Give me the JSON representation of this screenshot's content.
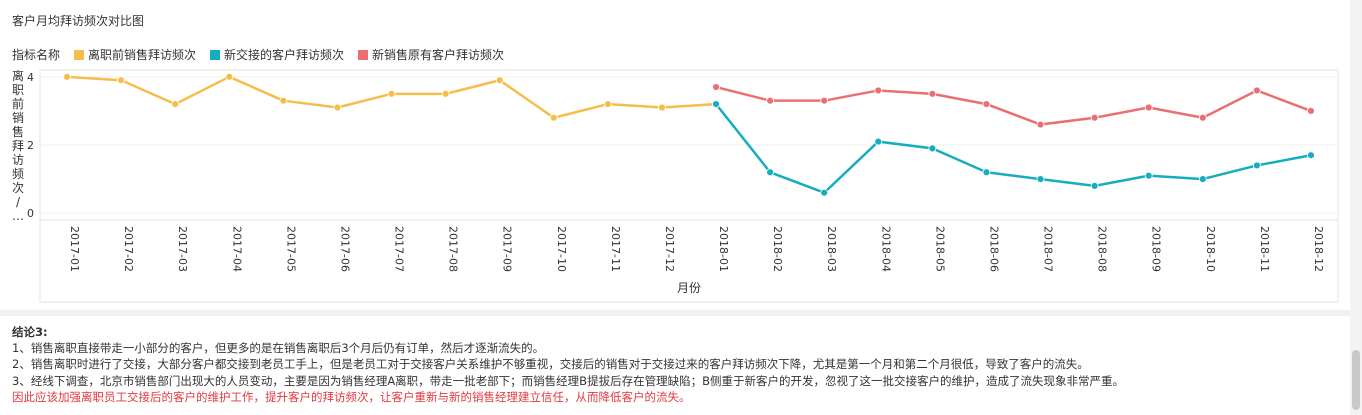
{
  "chart_data": {
    "type": "line",
    "title": "客户月均拜访频次对比图",
    "legend_title": "指标名称",
    "legend_position": "top-left",
    "xlabel": "月份",
    "ylabel": "离职前销售拜访频次/…",
    "ylim": [
      -0.2,
      4.2
    ],
    "yticks": [
      0,
      2,
      4
    ],
    "grid": true,
    "categories": [
      "2017-01",
      "2017-02",
      "2017-03",
      "2017-04",
      "2017-05",
      "2017-06",
      "2017-07",
      "2017-08",
      "2017-09",
      "2017-10",
      "2017-11",
      "2017-12",
      "2018-01",
      "2018-02",
      "2018-03",
      "2018-04",
      "2018-05",
      "2018-06",
      "2018-07",
      "2018-08",
      "2018-09",
      "2018-10",
      "2018-11",
      "2018-12"
    ],
    "series": [
      {
        "name": "离职前销售拜访频次",
        "color": "#f7bd4b",
        "values": [
          4.0,
          3.9,
          3.2,
          4.0,
          3.3,
          3.1,
          3.5,
          3.5,
          3.9,
          2.8,
          3.2,
          3.1,
          3.2,
          null,
          null,
          null,
          null,
          null,
          null,
          null,
          null,
          null,
          null,
          null
        ]
      },
      {
        "name": "新交接的客户拜访频次",
        "color": "#16adbf",
        "values": [
          null,
          null,
          null,
          null,
          null,
          null,
          null,
          null,
          null,
          null,
          null,
          null,
          3.2,
          1.2,
          0.6,
          2.1,
          1.9,
          1.2,
          1.0,
          0.8,
          1.1,
          1.0,
          1.4,
          1.7
        ]
      },
      {
        "name": "新销售原有客户拜访频次",
        "color": "#ea6f72",
        "values": [
          null,
          null,
          null,
          null,
          null,
          null,
          null,
          null,
          null,
          null,
          null,
          null,
          3.7,
          3.3,
          3.3,
          3.6,
          3.5,
          3.2,
          2.6,
          2.8,
          3.1,
          2.8,
          3.6,
          3.0
        ]
      }
    ]
  },
  "conclusion": {
    "title": "结论3:",
    "lines": [
      "1、销售离职直接带走一小部分的客户，但更多的是在销售离职后3个月后仍有订单，然后才逐渐流失的。",
      "2、销售离职时进行了交接，大部分客户都交接到老员工手上，但是老员工对于交接客户关系维护不够重视，交接后的销售对于交接过来的客户拜访频次下降，尤其是第一个月和第二个月很低，导致了客户的流失。",
      "3、经线下调查，北京市销售部门出现大的人员变动，主要是因为销售经理A离职，带走一批老部下；而销售经理B提拔后存在管理缺陷；B侧重于新客户的开发，忽视了这一批交接客户的维护，造成了流失现象非常严重。"
    ],
    "highlight": "因此应该加强离职员工交接后的客户的维护工作，提升客户的拜访频次，让客户重新与新的销售经理建立信任，从而降低客户的流失。"
  }
}
